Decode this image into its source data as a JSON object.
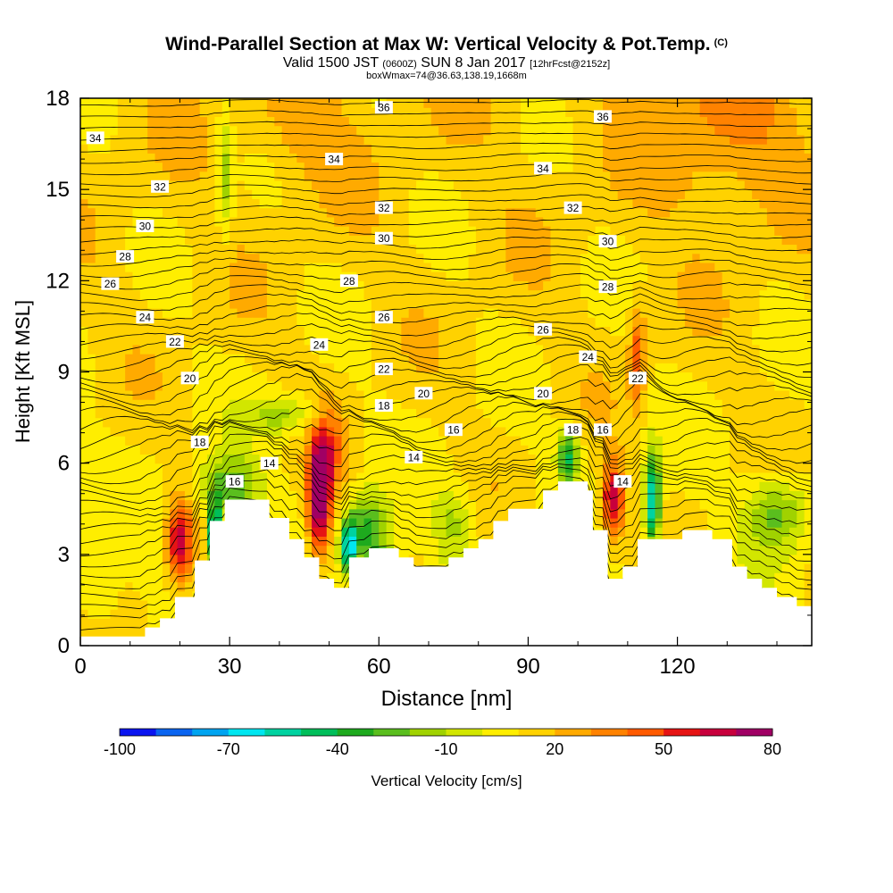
{
  "header": {
    "title_main": "Wind-Parallel Section at Max W: Vertical Velocity & Pot.Temp.",
    "title_tag": "(C)",
    "valid_prefix": "Valid 1500 JST",
    "valid_utc": "(0600Z)",
    "valid_date": "SUN 8 Jan 2017",
    "forecast_info": "[12hrFcst@2152z]",
    "box_info": "boxWmax=74@36.63,138.19,1668m"
  },
  "chart_data": {
    "type": "heatmap",
    "xlabel": "Distance [nm]",
    "ylabel": "Height [Kft MSL]",
    "xlim": [
      0,
      147
    ],
    "ylim": [
      0,
      18
    ],
    "x_ticks": [
      0,
      30,
      60,
      90,
      120
    ],
    "y_ticks": [
      0,
      3,
      6,
      9,
      12,
      15,
      18
    ],
    "colorbar": {
      "label": "Vertical Velocity [cm/s]",
      "tick_labels": [
        -100,
        -70,
        -40,
        -10,
        20,
        50,
        80
      ],
      "bins": [
        -100,
        -90,
        -80,
        -70,
        -60,
        -50,
        -40,
        -30,
        -20,
        -10,
        0,
        10,
        20,
        30,
        40,
        50,
        60,
        70,
        80
      ],
      "colors": [
        "#0a14f0",
        "#0a64f0",
        "#00a4f0",
        "#00e6f0",
        "#00d2a0",
        "#00be5a",
        "#1eaa1e",
        "#5abe1e",
        "#a0d200",
        "#d2e600",
        "#ffee00",
        "#ffd200",
        "#ffaa00",
        "#ff8200",
        "#ff5a00",
        "#e61414",
        "#c8003c",
        "#a00064"
      ]
    },
    "terrain": [
      {
        "x": 0,
        "z": 0.3
      },
      {
        "x": 13,
        "z": 0.3
      },
      {
        "x": 13,
        "z": 0.6
      },
      {
        "x": 16,
        "z": 0.6
      },
      {
        "x": 16,
        "z": 0.9
      },
      {
        "x": 19,
        "z": 0.9
      },
      {
        "x": 19,
        "z": 1.6
      },
      {
        "x": 23,
        "z": 1.6
      },
      {
        "x": 23,
        "z": 2.8
      },
      {
        "x": 26,
        "z": 2.8
      },
      {
        "x": 26,
        "z": 4.1
      },
      {
        "x": 29,
        "z": 4.1
      },
      {
        "x": 29,
        "z": 4.8
      },
      {
        "x": 38,
        "z": 4.8
      },
      {
        "x": 38,
        "z": 4.2
      },
      {
        "x": 42,
        "z": 4.2
      },
      {
        "x": 42,
        "z": 3.5
      },
      {
        "x": 45,
        "z": 3.5
      },
      {
        "x": 45,
        "z": 2.9
      },
      {
        "x": 48,
        "z": 2.9
      },
      {
        "x": 48,
        "z": 2.2
      },
      {
        "x": 51,
        "z": 2.2
      },
      {
        "x": 51,
        "z": 1.9
      },
      {
        "x": 54,
        "z": 1.9
      },
      {
        "x": 54,
        "z": 2.9
      },
      {
        "x": 58,
        "z": 2.9
      },
      {
        "x": 58,
        "z": 3.2
      },
      {
        "x": 64,
        "z": 3.2
      },
      {
        "x": 64,
        "z": 2.9
      },
      {
        "x": 67,
        "z": 2.9
      },
      {
        "x": 67,
        "z": 2.6
      },
      {
        "x": 70,
        "z": 2.6
      },
      {
        "x": 70,
        "z": 2.6
      },
      {
        "x": 74,
        "z": 2.6
      },
      {
        "x": 74,
        "z": 2.9
      },
      {
        "x": 77,
        "z": 2.9
      },
      {
        "x": 77,
        "z": 3.2
      },
      {
        "x": 80,
        "z": 3.2
      },
      {
        "x": 80,
        "z": 3.5
      },
      {
        "x": 83,
        "z": 3.5
      },
      {
        "x": 83,
        "z": 4.1
      },
      {
        "x": 86,
        "z": 4.1
      },
      {
        "x": 86,
        "z": 4.5
      },
      {
        "x": 93,
        "z": 4.5
      },
      {
        "x": 93,
        "z": 5.1
      },
      {
        "x": 96,
        "z": 5.1
      },
      {
        "x": 96,
        "z": 5.4
      },
      {
        "x": 102,
        "z": 5.4
      },
      {
        "x": 102,
        "z": 5.1
      },
      {
        "x": 103,
        "z": 5.1
      },
      {
        "x": 103,
        "z": 3.8
      },
      {
        "x": 106,
        "z": 3.8
      },
      {
        "x": 106,
        "z": 2.2
      },
      {
        "x": 109,
        "z": 2.2
      },
      {
        "x": 109,
        "z": 2.6
      },
      {
        "x": 112,
        "z": 2.6
      },
      {
        "x": 112,
        "z": 3.5
      },
      {
        "x": 121,
        "z": 3.5
      },
      {
        "x": 121,
        "z": 3.8
      },
      {
        "x": 127,
        "z": 3.8
      },
      {
        "x": 127,
        "z": 3.5
      },
      {
        "x": 131,
        "z": 3.5
      },
      {
        "x": 131,
        "z": 2.6
      },
      {
        "x": 134,
        "z": 2.6
      },
      {
        "x": 134,
        "z": 2.2
      },
      {
        "x": 137,
        "z": 2.2
      },
      {
        "x": 137,
        "z": 1.9
      },
      {
        "x": 140,
        "z": 1.9
      },
      {
        "x": 140,
        "z": 1.6
      },
      {
        "x": 144,
        "z": 1.6
      },
      {
        "x": 144,
        "z": 1.3
      },
      {
        "x": 147,
        "z": 1.3
      }
    ],
    "theta_labels": [
      {
        "x": 61,
        "z": 17.7,
        "text": "36"
      },
      {
        "x": 105,
        "z": 17.4,
        "text": "36"
      },
      {
        "x": 3,
        "z": 16.7,
        "text": "34"
      },
      {
        "x": 51,
        "z": 16.0,
        "text": "34"
      },
      {
        "x": 93,
        "z": 15.7,
        "text": "34"
      },
      {
        "x": 16,
        "z": 15.1,
        "text": "32"
      },
      {
        "x": 61,
        "z": 14.4,
        "text": "32"
      },
      {
        "x": 99,
        "z": 14.4,
        "text": "32"
      },
      {
        "x": 13,
        "z": 13.8,
        "text": "30"
      },
      {
        "x": 61,
        "z": 13.4,
        "text": "30"
      },
      {
        "x": 106,
        "z": 13.3,
        "text": "30"
      },
      {
        "x": 9,
        "z": 12.8,
        "text": "28"
      },
      {
        "x": 54,
        "z": 12.0,
        "text": "28"
      },
      {
        "x": 106,
        "z": 11.8,
        "text": "28"
      },
      {
        "x": 6,
        "z": 11.9,
        "text": "26"
      },
      {
        "x": 61,
        "z": 10.8,
        "text": "26"
      },
      {
        "x": 93,
        "z": 10.4,
        "text": "26"
      },
      {
        "x": 13,
        "z": 10.8,
        "text": "24"
      },
      {
        "x": 48,
        "z": 9.9,
        "text": "24"
      },
      {
        "x": 102,
        "z": 9.5,
        "text": "24"
      },
      {
        "x": 19,
        "z": 10.0,
        "text": "22"
      },
      {
        "x": 61,
        "z": 9.1,
        "text": "22"
      },
      {
        "x": 112,
        "z": 8.8,
        "text": "22"
      },
      {
        "x": 22,
        "z": 8.8,
        "text": "20"
      },
      {
        "x": 69,
        "z": 8.3,
        "text": "20"
      },
      {
        "x": 93,
        "z": 8.3,
        "text": "20"
      },
      {
        "x": 24,
        "z": 6.7,
        "text": "18"
      },
      {
        "x": 61,
        "z": 7.9,
        "text": "18"
      },
      {
        "x": 99,
        "z": 7.1,
        "text": "18"
      },
      {
        "x": 75,
        "z": 7.1,
        "text": "16"
      },
      {
        "x": 105,
        "z": 7.1,
        "text": "16"
      },
      {
        "x": 31,
        "z": 5.4,
        "text": "16"
      },
      {
        "x": 38,
        "z": 6.0,
        "text": "14"
      },
      {
        "x": 67,
        "z": 6.2,
        "text": "14"
      },
      {
        "x": 109,
        "z": 5.4,
        "text": "14"
      }
    ]
  }
}
